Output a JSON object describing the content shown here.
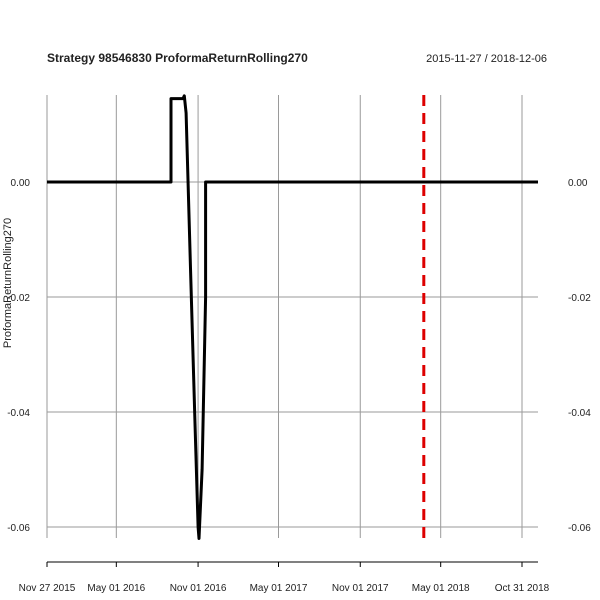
{
  "chart_data": {
    "type": "line",
    "title": "Strategy 98546830 ProformaReturnRolling270",
    "date_range": "2015-11-27 / 2018-12-06",
    "ylabel": "ProformaReturnRolling270",
    "ylim": [
      -0.0625,
      0.015
    ],
    "x_range": [
      "2015-11-27",
      "2018-12-06"
    ],
    "x_tick_labels": [
      "Nov 27 2015",
      "May 01 2016",
      "Nov 01 2016",
      "May 01 2017",
      "Nov 01 2017",
      "May 01 2018",
      "Oct 31 2018"
    ],
    "x_tick_dates": [
      "2015-11-27",
      "2016-05-01",
      "2016-11-01",
      "2017-05-01",
      "2017-11-01",
      "2018-05-01",
      "2018-10-31"
    ],
    "y_ticks": [
      0.0,
      -0.02,
      -0.04,
      -0.06
    ],
    "y_tick_labels": [
      "0.00",
      "-0.02",
      "-0.04",
      "-0.06"
    ],
    "grid": true,
    "series": [
      {
        "color": "#000000",
        "x": [
          "2015-11-27",
          "2016-09-01",
          "2016-09-01",
          "2016-09-28",
          "2016-10-01",
          "2016-10-05",
          "2016-10-15",
          "2016-10-25",
          "2016-11-01",
          "2016-11-03",
          "2016-11-10",
          "2016-11-18",
          "2016-11-18",
          "2018-12-06"
        ],
        "y": [
          0.0,
          0.0,
          0.0145,
          0.0145,
          0.015,
          0.012,
          -0.015,
          -0.042,
          -0.06,
          -0.062,
          -0.05,
          -0.02,
          0.0,
          0.0
        ]
      }
    ],
    "vline": {
      "date": "2018-03-24",
      "color": "#dd0000",
      "style": "dashed"
    }
  }
}
